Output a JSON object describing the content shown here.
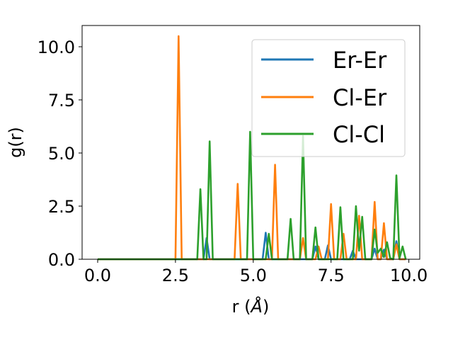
{
  "chart_data": {
    "type": "line",
    "xlabel": "r (",
    "xlabel_symbol": "Å",
    "xlabel_close": ")",
    "ylabel": "g(r)",
    "xlim": [
      -0.5,
      10.35
    ],
    "ylim": [
      0,
      11.0
    ],
    "xticks": [
      0.0,
      2.5,
      5.0,
      7.5,
      10.0
    ],
    "xtick_labels": [
      "0.0",
      "2.5",
      "5.0",
      "7.5",
      "10.0"
    ],
    "yticks": [
      0.0,
      2.5,
      5.0,
      7.5,
      10.0
    ],
    "ytick_labels": [
      "0.0",
      "2.5",
      "5.0",
      "7.5",
      "10.0"
    ],
    "grid": false,
    "legend_position": "top-right",
    "series": [
      {
        "name": "Er-Er",
        "color": "#1f77b4",
        "points": [
          [
            0.0,
            0
          ],
          [
            3.4,
            0
          ],
          [
            3.5,
            1.0
          ],
          [
            3.6,
            0
          ],
          [
            5.3,
            0
          ],
          [
            5.4,
            1.25
          ],
          [
            5.5,
            0
          ],
          [
            6.9,
            0
          ],
          [
            7.0,
            0.6
          ],
          [
            7.1,
            0
          ],
          [
            7.3,
            0
          ],
          [
            7.4,
            0.65
          ],
          [
            7.5,
            0
          ],
          [
            8.1,
            0
          ],
          [
            8.2,
            0.4
          ],
          [
            8.3,
            0
          ],
          [
            8.8,
            0
          ],
          [
            8.9,
            0.5
          ],
          [
            9.0,
            0
          ],
          [
            9.1,
            0
          ],
          [
            9.2,
            0.45
          ],
          [
            9.3,
            0
          ],
          [
            9.5,
            0
          ],
          [
            9.6,
            0.85
          ],
          [
            9.7,
            0
          ],
          [
            9.9,
            0
          ]
        ]
      },
      {
        "name": "Cl-Er",
        "color": "#ff7f0e",
        "points": [
          [
            0.0,
            0
          ],
          [
            2.5,
            0
          ],
          [
            2.6,
            10.5
          ],
          [
            2.7,
            0
          ],
          [
            4.4,
            0
          ],
          [
            4.5,
            3.55
          ],
          [
            4.6,
            0
          ],
          [
            5.6,
            0
          ],
          [
            5.7,
            4.45
          ],
          [
            5.8,
            0
          ],
          [
            6.5,
            0
          ],
          [
            6.6,
            1.0
          ],
          [
            6.7,
            0
          ],
          [
            7.0,
            0
          ],
          [
            7.1,
            0.6
          ],
          [
            7.2,
            0
          ],
          [
            7.4,
            0
          ],
          [
            7.5,
            2.6
          ],
          [
            7.6,
            0
          ],
          [
            7.8,
            0
          ],
          [
            7.9,
            1.2
          ],
          [
            8.0,
            0
          ],
          [
            8.3,
            0
          ],
          [
            8.4,
            2.05
          ],
          [
            8.5,
            0
          ],
          [
            8.8,
            0
          ],
          [
            8.9,
            2.7
          ],
          [
            9.0,
            0
          ],
          [
            9.1,
            0
          ],
          [
            9.2,
            1.7
          ],
          [
            9.3,
            0
          ],
          [
            9.5,
            0
          ],
          [
            9.6,
            0.7
          ],
          [
            9.7,
            0
          ],
          [
            9.9,
            0
          ]
        ]
      },
      {
        "name": "Cl-Cl",
        "color": "#2ca02c",
        "points": [
          [
            0.0,
            0
          ],
          [
            3.2,
            0
          ],
          [
            3.3,
            3.3
          ],
          [
            3.4,
            0
          ],
          [
            3.5,
            0
          ],
          [
            3.6,
            5.55
          ],
          [
            3.7,
            0
          ],
          [
            4.8,
            0
          ],
          [
            4.9,
            6.0
          ],
          [
            5.0,
            0
          ],
          [
            5.4,
            0
          ],
          [
            5.5,
            1.2
          ],
          [
            5.6,
            0
          ],
          [
            6.1,
            0
          ],
          [
            6.2,
            1.9
          ],
          [
            6.3,
            0
          ],
          [
            6.5,
            0
          ],
          [
            6.6,
            5.8
          ],
          [
            6.7,
            0
          ],
          [
            6.9,
            0
          ],
          [
            7.0,
            1.5
          ],
          [
            7.1,
            0
          ],
          [
            7.7,
            0
          ],
          [
            7.8,
            2.45
          ],
          [
            7.9,
            0
          ],
          [
            8.2,
            0
          ],
          [
            8.3,
            2.5
          ],
          [
            8.4,
            0.4
          ],
          [
            8.5,
            2.0
          ],
          [
            8.6,
            0
          ],
          [
            8.8,
            0
          ],
          [
            8.9,
            1.4
          ],
          [
            9.0,
            0.3
          ],
          [
            9.1,
            0.5
          ],
          [
            9.2,
            0.1
          ],
          [
            9.3,
            0.8
          ],
          [
            9.4,
            0.05
          ],
          [
            9.5,
            0
          ],
          [
            9.6,
            3.95
          ],
          [
            9.7,
            0.05
          ],
          [
            9.8,
            0.6
          ],
          [
            9.9,
            0
          ]
        ]
      }
    ]
  }
}
